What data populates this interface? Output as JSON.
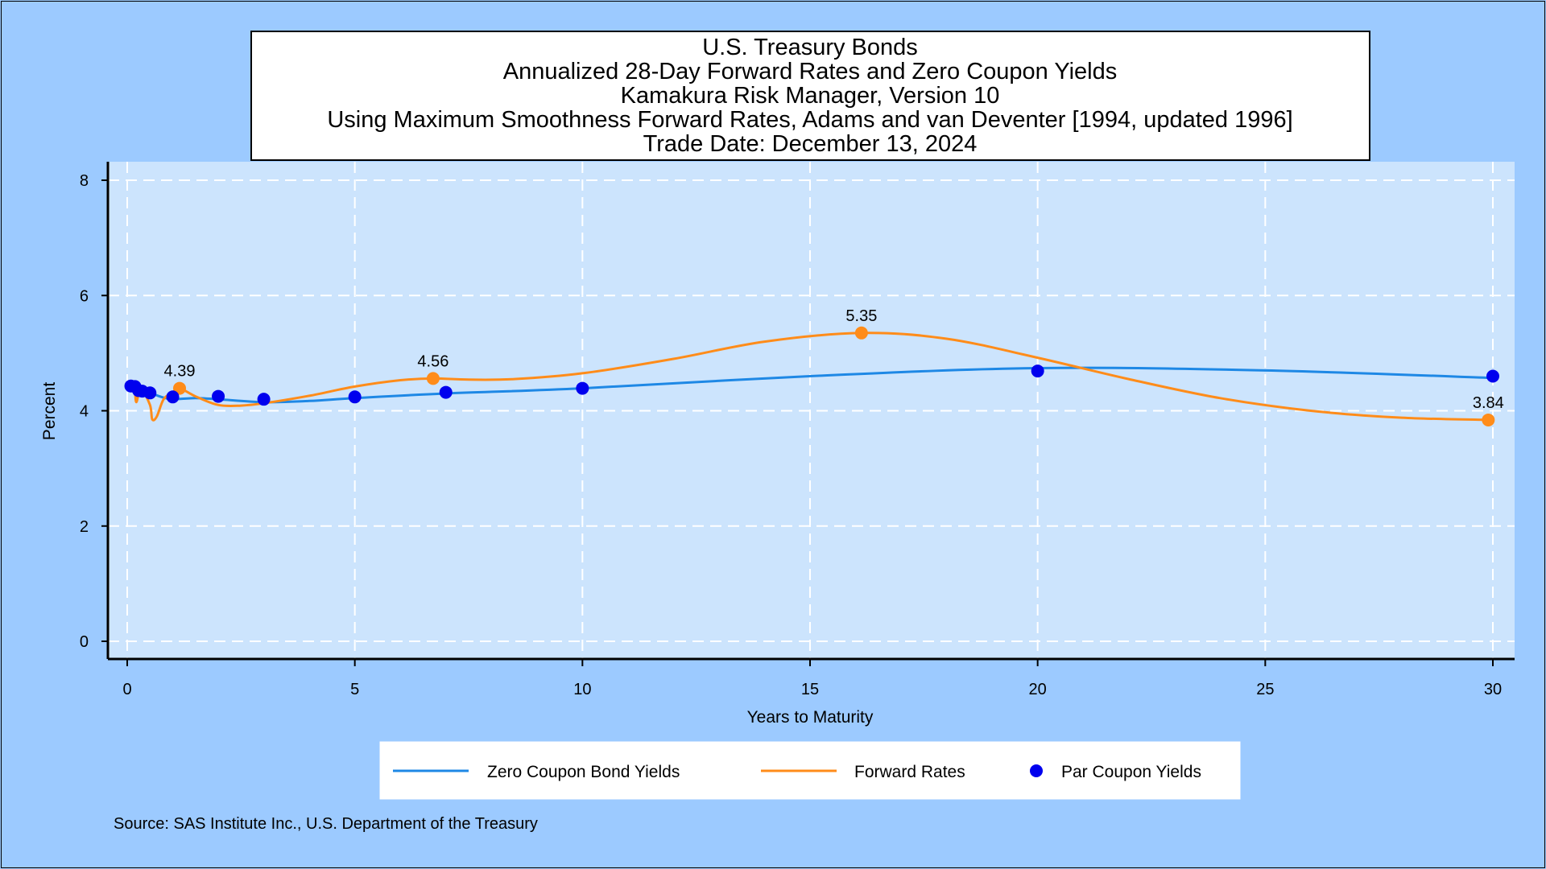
{
  "chart_data": {
    "type": "line",
    "title_lines": [
      "U.S. Treasury Bonds",
      "Annualized 28-Day Forward Rates and Zero Coupon Yields",
      "Kamakura Risk Manager, Version 10",
      "Using Maximum Smoothness Forward Rates, Adams and van Deventer [1994, updated 1996]",
      "Trade Date: December 13, 2024"
    ],
    "xlabel": "Years to Maturity",
    "ylabel": "Percent",
    "xlim": [
      0,
      30
    ],
    "ylim": [
      0,
      8
    ],
    "x_ticks": [
      0,
      5,
      10,
      15,
      20,
      25,
      30
    ],
    "y_ticks": [
      0,
      2,
      4,
      6,
      8
    ],
    "grid": true,
    "legend_position": "bottom",
    "series": [
      {
        "name": "Zero Coupon Bond Yields",
        "style": "line",
        "color": "#1e88e5",
        "x": [
          0.0,
          0.1,
          0.25,
          0.5,
          0.75,
          1.0,
          1.5,
          2.0,
          3.0,
          4.0,
          5.0,
          7.0,
          10.0,
          15.0,
          20.0,
          25.0,
          30.0
        ],
        "y": [
          4.42,
          4.4,
          4.36,
          4.31,
          4.24,
          4.2,
          4.22,
          4.2,
          4.15,
          4.17,
          4.22,
          4.3,
          4.39,
          4.6,
          4.74,
          4.7,
          4.57
        ]
      },
      {
        "name": "Forward Rates",
        "style": "line",
        "color": "#ff8c1a",
        "x": [
          0.0,
          0.15,
          0.2,
          0.3,
          0.5,
          0.55,
          0.65,
          0.8,
          1.0,
          1.15,
          1.5,
          2.0,
          2.5,
          3.0,
          4.0,
          5.0,
          6.0,
          6.72,
          7.5,
          8.5,
          10.0,
          12.0,
          14.0,
          16.13,
          18.0,
          20.0,
          22.0,
          24.0,
          26.0,
          28.0,
          30.0
        ],
        "y": [
          4.42,
          4.4,
          4.15,
          4.38,
          4.1,
          3.85,
          3.9,
          4.2,
          4.32,
          4.39,
          4.25,
          4.1,
          4.09,
          4.13,
          4.26,
          4.42,
          4.53,
          4.56,
          4.54,
          4.55,
          4.65,
          4.9,
          5.2,
          5.35,
          5.25,
          4.92,
          4.55,
          4.22,
          4.0,
          3.88,
          3.84
        ]
      },
      {
        "name": "Par Coupon Yields",
        "style": "scatter",
        "color": "#0000ee",
        "x": [
          0.08,
          0.17,
          0.25,
          0.33,
          0.5,
          1.0,
          2.0,
          3.0,
          5.0,
          7.0,
          10.0,
          20.0,
          30.0
        ],
        "y": [
          4.43,
          4.42,
          4.35,
          4.34,
          4.31,
          4.24,
          4.25,
          4.2,
          4.24,
          4.32,
          4.39,
          4.69,
          4.6
        ]
      }
    ],
    "forward_markers": {
      "color": "#ff8c1a",
      "points": [
        {
          "x": 1.15,
          "y": 4.39,
          "label": "4.39"
        },
        {
          "x": 6.72,
          "y": 4.56,
          "label": "4.56"
        },
        {
          "x": 16.13,
          "y": 5.35,
          "label": "5.35"
        },
        {
          "x": 29.9,
          "y": 3.84,
          "label": "3.84"
        }
      ]
    },
    "source": "Source: SAS Institute Inc., U.S. Department of the Treasury"
  },
  "colors": {
    "page_background": "#9ccaff",
    "plot_background": "#cce4fd",
    "grid": "#ffffff",
    "title_box": "#ffffff",
    "legend_box": "#ffffff"
  }
}
